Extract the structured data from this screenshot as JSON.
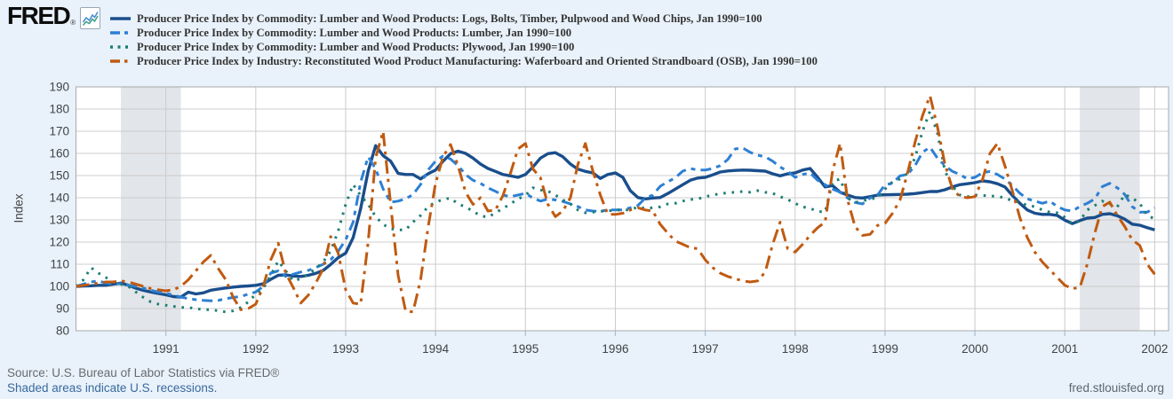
{
  "header": {
    "logo_text": "FRED",
    "registered_mark": "®",
    "logo_icon": "line-chart-icon"
  },
  "chart": {
    "ylabel": "Index",
    "yticks": [
      80,
      90,
      100,
      110,
      120,
      130,
      140,
      150,
      160,
      170,
      180,
      190
    ],
    "xticks": [
      1991,
      1992,
      1993,
      1994,
      1995,
      1996,
      1997,
      1998,
      1999,
      2000,
      2001,
      2002
    ]
  },
  "chart_data": {
    "type": "line",
    "ylabel": "Index",
    "ylim": [
      80,
      190
    ],
    "grid": true,
    "legend_position": "top-left",
    "x_unit": "month",
    "x_start": "1990-01",
    "x_end": "2002-01",
    "xticks": [
      1991,
      1992,
      1993,
      1994,
      1995,
      1996,
      1997,
      1998,
      1999,
      2000,
      2001,
      2002
    ],
    "yticks": [
      80,
      90,
      100,
      110,
      120,
      130,
      140,
      150,
      160,
      170,
      180,
      190
    ],
    "recession_bands": [
      {
        "from": "1990-07",
        "to": "1991-03"
      },
      {
        "from": "2001-03",
        "to": "2001-11"
      }
    ],
    "series": [
      {
        "slug": "logs-bolts-timber",
        "name": "Producer Price Index by Commodity: Lumber and Wood Products: Logs, Bolts, Timber, Pulpwood and Wood Chips, Jan 1990=100",
        "color": "#1a4e8c",
        "line_style": "solid",
        "values": [
          100,
          100.2,
          100.3,
          100.5,
          100.5,
          101,
          101.5,
          100.5,
          99.2,
          98.2,
          97.5,
          96.8,
          96.2,
          95.4,
          95.2,
          97.4,
          96.6,
          97.1,
          98.3,
          98.8,
          99.3,
          99.7,
          100,
          100.2,
          100.5,
          101.2,
          103.2,
          105,
          105.2,
          104.7,
          104.5,
          105,
          105.9,
          107.2,
          109.9,
          113,
          115,
          122,
          135,
          152,
          163.5,
          159,
          156.5,
          151,
          150.5,
          150.5,
          148.5,
          150.8,
          152.5,
          156.5,
          159.9,
          161,
          160,
          157.9,
          155.2,
          153.2,
          151.9,
          150.5,
          149.9,
          149.2,
          150.5,
          153.9,
          157.9,
          159.9,
          160.3,
          158.5,
          155.2,
          152.9,
          151.9,
          151.2,
          148.7,
          150.5,
          151.2,
          149.2,
          143.2,
          140.1,
          139.5,
          139.9,
          140.1,
          141.9,
          143.9,
          145.9,
          147.9,
          148.9,
          149.2,
          150.3,
          151.6,
          152.1,
          152.3,
          152.5,
          152.4,
          152.2,
          152,
          150.8,
          149.9,
          150.8,
          151.2,
          152.5,
          153.2,
          149.2,
          144.9,
          145.5,
          142.5,
          141.2,
          140.1,
          139.9,
          140.5,
          141.2,
          141.3,
          141.4,
          141.5,
          141.6,
          141.9,
          142.3,
          142.8,
          142.8,
          143.6,
          144.9,
          145.9,
          146.3,
          146.8,
          147.6,
          147.2,
          146.3,
          144.9,
          141,
          137.5,
          134.5,
          133,
          132.5,
          132.5,
          132,
          129.9,
          128.3,
          129.7,
          130.8,
          131.1,
          132.5,
          132.8,
          131.9,
          130.3,
          128.1,
          127.6,
          126.5,
          125.5
        ]
      },
      {
        "slug": "lumber",
        "name": "Producer Price Index by Commodity: Lumber and Wood Products: Lumber, Jan 1990=100",
        "color": "#2d80d4",
        "line_style": "dash",
        "values": [
          100,
          101,
          102,
          102.5,
          101.5,
          101,
          101.2,
          100.5,
          100,
          99.2,
          98.3,
          97.5,
          97,
          96,
          95.2,
          94.5,
          94,
          93.7,
          93.5,
          93.7,
          94.5,
          95,
          95.5,
          96.5,
          97.5,
          100,
          106,
          107,
          104.5,
          105.5,
          106.5,
          107.2,
          108.5,
          110,
          112,
          115.9,
          121,
          129,
          147,
          158.5,
          153,
          144,
          138,
          138.5,
          139.5,
          141.5,
          146,
          152.5,
          156.5,
          158.8,
          157.5,
          154.5,
          150.5,
          147.9,
          146.5,
          144.5,
          142.9,
          141.2,
          140.5,
          141.2,
          142,
          139.9,
          138.5,
          139.5,
          139,
          138.3,
          137.2,
          136,
          134.5,
          134,
          133.9,
          134.5,
          134.5,
          134.5,
          135.5,
          136.5,
          139.9,
          141.2,
          145.2,
          147.2,
          149,
          152,
          153.2,
          152.5,
          152.5,
          153.2,
          154.5,
          157.2,
          162,
          162.5,
          160.5,
          159.2,
          158.5,
          156.5,
          153.9,
          151.9,
          149.2,
          150.5,
          151.2,
          147.9,
          145.9,
          143.9,
          142.5,
          139.9,
          137.9,
          137.2,
          139.9,
          141.2,
          145.9,
          146.5,
          149.9,
          150.5,
          154.5,
          160.5,
          162.8,
          157.9,
          154.5,
          151.9,
          150.5,
          148.5,
          149.2,
          151.2,
          151.9,
          150.5,
          148.5,
          145.5,
          142,
          139.5,
          138.5,
          137.5,
          138.5,
          136,
          134.5,
          134,
          136,
          137.5,
          139.5,
          145,
          146.5,
          144.5,
          141.5,
          136,
          133.5,
          133.5,
          135.5
        ]
      },
      {
        "slug": "plywood",
        "name": "Producer Price Index by Commodity: Lumber and Wood Products: Plywood, Jan 1990=100",
        "color": "#1e7e74",
        "line_style": "dot",
        "values": [
          100,
          103,
          108.5,
          106,
          104,
          102,
          101,
          100,
          97.5,
          95,
          93,
          92,
          91.5,
          91,
          90.5,
          90.5,
          90,
          89.5,
          89.5,
          89,
          88.5,
          89,
          90.5,
          93,
          96.5,
          99,
          105,
          111.5,
          107,
          102.5,
          103.5,
          105.5,
          108,
          111,
          116,
          125,
          137,
          146,
          141,
          137,
          131.5,
          128,
          126,
          125.5,
          125.5,
          129,
          132,
          136,
          138,
          139.2,
          139.9,
          137.2,
          135.9,
          133.9,
          131.9,
          131.2,
          133.2,
          135.2,
          137.2,
          139.5,
          141,
          144.5,
          143.5,
          143,
          141.2,
          139,
          137.2,
          134.5,
          133.2,
          133.5,
          133.9,
          134,
          134.5,
          134.5,
          134.5,
          135.9,
          135.2,
          135.5,
          135.9,
          137.2,
          137.5,
          138.5,
          139.2,
          139.5,
          140.5,
          141.2,
          141.9,
          142.2,
          142.5,
          142.8,
          142.5,
          143.2,
          142.5,
          142,
          140.5,
          139.2,
          137.5,
          135.9,
          135.2,
          133.9,
          133.5,
          147.2,
          148.5,
          139.9,
          137.9,
          138.5,
          139.5,
          139.9,
          143.9,
          147.2,
          148.5,
          151,
          158,
          170,
          179,
          169.2,
          152,
          145.2,
          141.2,
          140.5,
          141.2,
          141,
          140.9,
          140.5,
          140.1,
          138.5,
          138,
          136.5,
          136,
          134.5,
          133.5,
          133.2,
          131.2,
          128.2,
          129.5,
          134.5,
          136.5,
          138.5,
          137.2,
          135.9,
          141.5,
          139.9,
          137.5,
          132,
          130.5
        ]
      },
      {
        "slug": "osb-waferboard",
        "name": "Producer Price Index by Industry: Reconstituted Wood Product Manufacturing: Waferboard and Oriented Strandboard (OSB), Jan 1990=100",
        "color": "#c05a10",
        "line_style": "dashdot",
        "values": [
          100,
          100.5,
          101,
          101.5,
          102,
          102,
          102.5,
          102,
          101,
          100,
          99,
          98.5,
          98,
          98.5,
          100,
          103,
          107,
          111,
          114,
          108,
          103,
          95,
          89.5,
          90,
          92,
          100,
          112,
          119.5,
          106,
          99.5,
          92.5,
          96,
          101.5,
          108,
          122.5,
          115,
          98.5,
          92.5,
          92,
          120,
          158,
          170,
          137,
          105,
          89,
          88.5,
          103,
          126.5,
          146.5,
          158.5,
          164,
          154.5,
          142.5,
          137,
          140,
          134,
          134.5,
          141,
          151,
          162,
          164.5,
          153,
          149,
          137,
          131.5,
          134,
          140,
          155,
          164.5,
          152,
          141.2,
          132.5,
          132.5,
          133,
          134.5,
          135.5,
          134.5,
          134,
          128,
          124,
          120.5,
          119,
          117.5,
          117,
          112,
          108.5,
          106,
          104.5,
          103.5,
          102.5,
          102,
          102.5,
          106.5,
          119,
          129,
          117,
          115.5,
          119,
          123,
          126.5,
          129,
          152,
          164.5,
          139,
          127,
          123,
          123.5,
          127.5,
          128.5,
          133,
          139,
          151,
          165,
          177,
          186,
          172,
          155,
          144,
          140.5,
          140,
          140.5,
          148,
          160,
          164.5,
          154.5,
          143,
          131,
          122,
          115.5,
          111,
          107.5,
          104,
          100.5,
          99,
          99.5,
          110,
          124,
          136,
          138,
          132,
          127,
          121,
          118.5,
          110,
          105.5
        ]
      }
    ]
  },
  "colors": {
    "background": "#e9f2fa",
    "plot_background": "#ffffff",
    "gridline": "#cccccc",
    "plot_border": "#a8a8a8",
    "recession_band": "#e2e5e9",
    "tick_mark": "#a9bed2",
    "axis_text": "#3f4447"
  },
  "footer": {
    "source": "Source: U.S. Bureau of Labor Statistics via FRED®",
    "recession_note": "Shaded areas indicate U.S. recessions.",
    "site": "fred.stlouisfed.org"
  }
}
